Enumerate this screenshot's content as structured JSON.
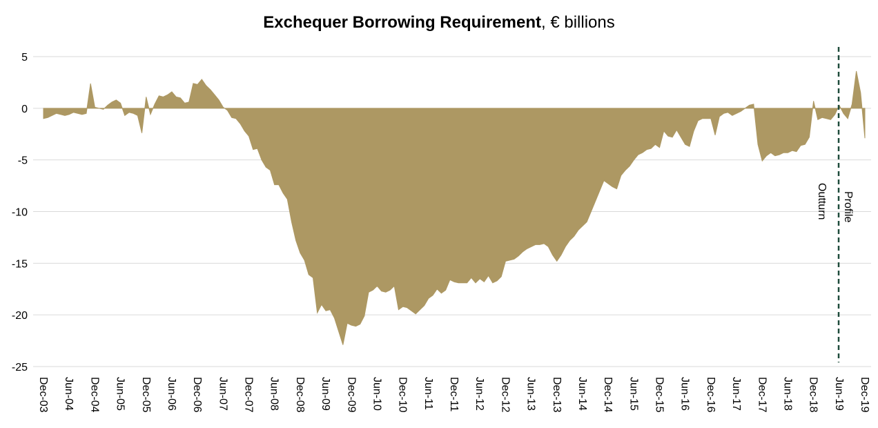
{
  "chart_data": {
    "type": "area",
    "title": "Exchequer Borrowing Requirement",
    "subtitle": ", € billions",
    "annotations": [
      "Outturn",
      "Profile"
    ],
    "color": "#ad9863",
    "grid": true,
    "ylim": [
      -25,
      5
    ],
    "yticks": [
      -25,
      -20,
      -15,
      -10,
      -5,
      0,
      5
    ],
    "categories": [
      "Dec-03",
      null,
      null,
      null,
      null,
      null,
      "Jun-04",
      null,
      null,
      null,
      null,
      null,
      "Dec-04",
      null,
      null,
      null,
      null,
      null,
      "Jun-05",
      null,
      null,
      null,
      null,
      null,
      "Dec-05",
      null,
      null,
      null,
      null,
      null,
      "Jun-06",
      null,
      null,
      null,
      null,
      null,
      "Dec-06",
      null,
      null,
      null,
      null,
      null,
      "Jun-07",
      null,
      null,
      null,
      null,
      null,
      "Dec-07",
      null,
      null,
      null,
      null,
      null,
      "Jun-08",
      null,
      null,
      null,
      null,
      null,
      "Dec-08",
      null,
      null,
      null,
      null,
      null,
      "Jun-09",
      null,
      null,
      null,
      null,
      null,
      "Dec-09",
      null,
      null,
      null,
      null,
      null,
      "Jun-10",
      null,
      null,
      null,
      null,
      null,
      "Dec-10",
      null,
      null,
      null,
      null,
      null,
      "Jun-11",
      null,
      null,
      null,
      null,
      null,
      "Dec-11",
      null,
      null,
      null,
      null,
      null,
      "Jun-12",
      null,
      null,
      null,
      null,
      null,
      "Dec-12",
      null,
      null,
      null,
      null,
      null,
      "Jun-13",
      null,
      null,
      null,
      null,
      null,
      "Dec-13",
      null,
      null,
      null,
      null,
      null,
      "Jun-14",
      null,
      null,
      null,
      null,
      null,
      "Dec-14",
      null,
      null,
      null,
      null,
      null,
      "Jun-15",
      null,
      null,
      null,
      null,
      null,
      "Dec-15",
      null,
      null,
      null,
      null,
      null,
      "Jun-16",
      null,
      null,
      null,
      null,
      null,
      "Dec-16",
      null,
      null,
      null,
      null,
      null,
      "Jun-17",
      null,
      null,
      null,
      null,
      null,
      "Dec-17",
      null,
      null,
      null,
      null,
      null,
      "Jun-18",
      null,
      null,
      null,
      null,
      null,
      "Dec-18",
      null,
      null,
      null,
      null,
      null,
      "Jun-19",
      null,
      null,
      null,
      null,
      null,
      "Dec-19"
    ],
    "values": [
      -1.0,
      -0.9,
      -0.7,
      -0.5,
      -0.6,
      -0.7,
      -0.6,
      -0.4,
      -0.5,
      -0.6,
      -0.5,
      2.4,
      0.1,
      0.0,
      -0.1,
      0.3,
      0.6,
      0.8,
      0.5,
      -0.7,
      -0.4,
      -0.5,
      -0.7,
      -2.4,
      1.1,
      -0.6,
      0.4,
      1.2,
      1.1,
      1.3,
      1.6,
      1.1,
      1.0,
      0.5,
      0.6,
      2.4,
      2.3,
      2.8,
      2.2,
      1.8,
      1.3,
      0.8,
      0.1,
      -0.2,
      -0.9,
      -1.0,
      -1.5,
      -2.2,
      -2.7,
      -4.0,
      -3.9,
      -5.0,
      -5.7,
      -6.0,
      -7.4,
      -7.4,
      -8.2,
      -8.8,
      -11.0,
      -12.8,
      -14.0,
      -14.7,
      -16.1,
      -16.4,
      -19.8,
      -19.0,
      -19.6,
      -19.5,
      -20.3,
      -21.6,
      -22.9,
      -20.8,
      -21.0,
      -21.1,
      -20.9,
      -20.1,
      -17.8,
      -17.6,
      -17.2,
      -17.7,
      -17.8,
      -17.6,
      -17.2,
      -19.5,
      -19.2,
      -19.3,
      -19.6,
      -19.9,
      -19.5,
      -19.1,
      -18.4,
      -18.1,
      -17.5,
      -17.9,
      -17.6,
      -16.6,
      -16.8,
      -16.9,
      -16.9,
      -16.9,
      -16.4,
      -16.9,
      -16.5,
      -16.8,
      -16.2,
      -16.9,
      -16.7,
      -16.3,
      -14.8,
      -14.7,
      -14.6,
      -14.3,
      -13.9,
      -13.6,
      -13.4,
      -13.2,
      -13.2,
      -13.1,
      -13.4,
      -14.2,
      -14.8,
      -14.2,
      -13.4,
      -12.8,
      -12.4,
      -11.8,
      -11.4,
      -11.0,
      -10.0,
      -9.0,
      -8.0,
      -7.0,
      -7.3,
      -7.6,
      -7.8,
      -6.5,
      -6.0,
      -5.6,
      -5.0,
      -4.5,
      -4.3,
      -4.0,
      -3.9,
      -3.5,
      -3.8,
      -2.2,
      -2.7,
      -2.8,
      -2.1,
      -2.8,
      -3.5,
      -3.7,
      -2.2,
      -1.2,
      -1.0,
      -1.0,
      -1.0,
      -2.6,
      -0.8,
      -0.5,
      -0.4,
      -0.7,
      -0.5,
      -0.3,
      0.0,
      0.3,
      0.4,
      -3.5,
      -5.1,
      -4.6,
      -4.3,
      -4.6,
      -4.5,
      -4.3,
      -4.3,
      -4.1,
      -4.2,
      -3.6,
      -3.5,
      -2.8,
      0.7,
      -1.1,
      -0.9,
      -1.0,
      -1.1,
      -0.6,
      0.3,
      -0.5,
      -1.0,
      0.4,
      3.6,
      1.5,
      -2.9
    ]
  }
}
